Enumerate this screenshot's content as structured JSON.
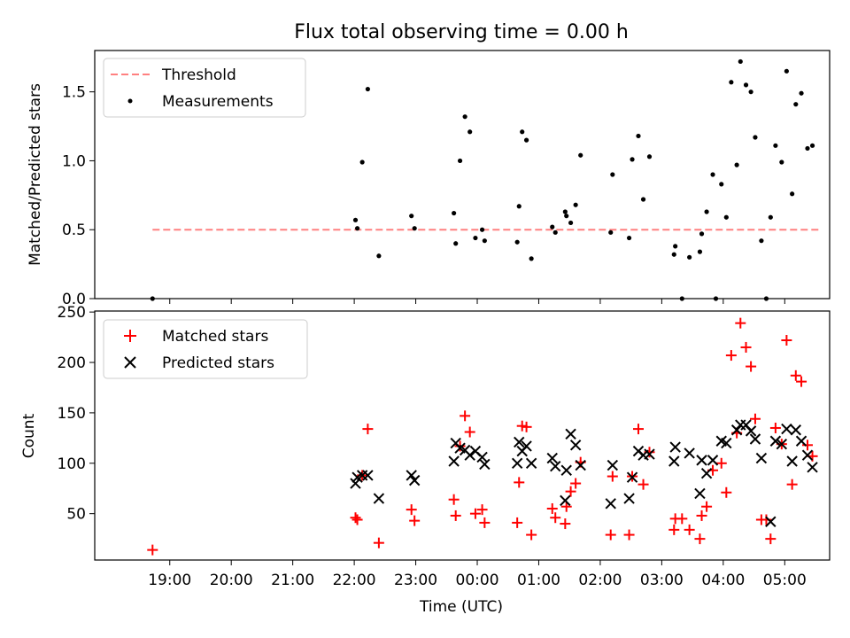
{
  "chart_data": [
    {
      "type": "scatter",
      "title": "Flux total observing time = 0.00 h",
      "xlabel": "",
      "ylabel": "Matched/Predicted stars",
      "ylim": [
        0,
        1.8
      ],
      "yticks": [
        0.0,
        0.5,
        1.0,
        1.5
      ],
      "ytick_labels": [
        "0.0",
        "0.5",
        "1.0",
        "1.5"
      ],
      "legend_position": "upper-left",
      "series": [
        {
          "name": "Threshold",
          "kind": "dashed-line",
          "color": "#ff8080",
          "points": [
            [
              18.72,
              0.5
            ],
            [
              29.55,
              0.5
            ]
          ]
        },
        {
          "name": "Measurements",
          "kind": "dots",
          "color": "#000000",
          "points": [
            [
              18.72,
              0.0
            ],
            [
              22.02,
              0.57
            ],
            [
              22.05,
              0.51
            ],
            [
              22.13,
              0.99
            ],
            [
              22.22,
              1.52
            ],
            [
              22.4,
              0.31
            ],
            [
              22.93,
              0.6
            ],
            [
              22.98,
              0.51
            ],
            [
              23.62,
              0.62
            ],
            [
              23.65,
              0.4
            ],
            [
              23.72,
              1.0
            ],
            [
              23.8,
              1.32
            ],
            [
              23.88,
              1.21
            ],
            [
              23.97,
              0.44
            ],
            [
              24.08,
              0.5
            ],
            [
              24.12,
              0.42
            ],
            [
              24.65,
              0.41
            ],
            [
              24.68,
              0.67
            ],
            [
              24.73,
              1.21
            ],
            [
              24.8,
              1.15
            ],
            [
              24.88,
              0.29
            ],
            [
              25.22,
              0.52
            ],
            [
              25.27,
              0.48
            ],
            [
              25.43,
              0.63
            ],
            [
              25.45,
              0.6
            ],
            [
              25.52,
              0.55
            ],
            [
              25.6,
              0.68
            ],
            [
              25.68,
              1.04
            ],
            [
              26.17,
              0.48
            ],
            [
              26.2,
              0.9
            ],
            [
              26.47,
              0.44
            ],
            [
              26.52,
              1.01
            ],
            [
              26.62,
              1.18
            ],
            [
              26.7,
              0.72
            ],
            [
              26.8,
              1.03
            ],
            [
              27.2,
              0.32
            ],
            [
              27.22,
              0.38
            ],
            [
              27.33,
              0.0
            ],
            [
              27.45,
              0.3
            ],
            [
              27.62,
              0.34
            ],
            [
              27.65,
              0.47
            ],
            [
              27.73,
              0.63
            ],
            [
              27.83,
              0.9
            ],
            [
              27.88,
              0.0
            ],
            [
              27.97,
              0.83
            ],
            [
              28.05,
              0.59
            ],
            [
              28.13,
              1.57
            ],
            [
              28.22,
              0.97
            ],
            [
              28.28,
              1.72
            ],
            [
              28.37,
              1.55
            ],
            [
              28.45,
              1.5
            ],
            [
              28.52,
              1.17
            ],
            [
              28.62,
              0.42
            ],
            [
              28.7,
              0.0
            ],
            [
              28.77,
              0.59
            ],
            [
              28.85,
              1.11
            ],
            [
              28.95,
              0.99
            ],
            [
              29.03,
              1.65
            ],
            [
              29.12,
              0.76
            ],
            [
              29.18,
              1.41
            ],
            [
              29.27,
              1.49
            ],
            [
              29.37,
              1.09
            ],
            [
              29.45,
              1.11
            ]
          ]
        }
      ]
    },
    {
      "type": "scatter",
      "title": "",
      "xlabel": "Time (UTC)",
      "ylabel": "Count",
      "xlim": [
        17.78,
        29.73
      ],
      "xticks": [
        19,
        20,
        21,
        22,
        23,
        24,
        25,
        26,
        27,
        28,
        29
      ],
      "xtick_labels": [
        "19:00",
        "20:00",
        "21:00",
        "22:00",
        "23:00",
        "00:00",
        "01:00",
        "02:00",
        "03:00",
        "04:00",
        "05:00"
      ],
      "ylim": [
        4,
        251
      ],
      "yticks": [
        50,
        100,
        150,
        200,
        250
      ],
      "ytick_labels": [
        "50",
        "100",
        "150",
        "200",
        "250"
      ],
      "legend_position": "upper-left",
      "series": [
        {
          "name": "Matched stars",
          "kind": "plus",
          "color": "#ff0000",
          "points": [
            [
              18.72,
              14
            ],
            [
              22.02,
              46
            ],
            [
              22.05,
              44
            ],
            [
              22.13,
              88
            ],
            [
              22.22,
              134
            ],
            [
              22.4,
              21
            ],
            [
              22.93,
              54
            ],
            [
              22.98,
              43
            ],
            [
              23.62,
              64
            ],
            [
              23.65,
              48
            ],
            [
              23.72,
              117
            ],
            [
              23.8,
              147
            ],
            [
              23.88,
              131
            ],
            [
              23.97,
              50
            ],
            [
              24.08,
              54
            ],
            [
              24.12,
              41
            ],
            [
              24.65,
              41
            ],
            [
              24.68,
              81
            ],
            [
              24.73,
              137
            ],
            [
              24.8,
              136
            ],
            [
              24.88,
              29
            ],
            [
              25.22,
              55
            ],
            [
              25.27,
              46
            ],
            [
              25.43,
              40
            ],
            [
              25.45,
              57
            ],
            [
              25.52,
              72
            ],
            [
              25.6,
              80
            ],
            [
              25.68,
              101
            ],
            [
              26.17,
              29
            ],
            [
              26.2,
              87
            ],
            [
              26.47,
              29
            ],
            [
              26.52,
              87
            ],
            [
              26.62,
              134
            ],
            [
              26.7,
              79
            ],
            [
              26.8,
              111
            ],
            [
              27.2,
              34
            ],
            [
              27.22,
              45
            ],
            [
              27.33,
              45
            ],
            [
              27.45,
              34
            ],
            [
              27.62,
              25
            ],
            [
              27.65,
              48
            ],
            [
              27.73,
              57
            ],
            [
              27.83,
              93
            ],
            [
              27.97,
              100
            ],
            [
              28.05,
              71
            ],
            [
              28.13,
              207
            ],
            [
              28.22,
              130
            ],
            [
              28.28,
              239
            ],
            [
              28.37,
              215
            ],
            [
              28.45,
              196
            ],
            [
              28.52,
              144
            ],
            [
              28.62,
              44
            ],
            [
              28.7,
              44
            ],
            [
              28.77,
              25
            ],
            [
              28.85,
              135
            ],
            [
              28.95,
              119
            ],
            [
              29.03,
              222
            ],
            [
              29.12,
              79
            ],
            [
              29.18,
              187
            ],
            [
              29.27,
              181
            ],
            [
              29.37,
              118
            ],
            [
              29.45,
              107
            ]
          ]
        },
        {
          "name": "Predicted stars",
          "kind": "cross",
          "color": "#000000",
          "points": [
            [
              22.02,
              80
            ],
            [
              22.05,
              86
            ],
            [
              22.13,
              88
            ],
            [
              22.22,
              88
            ],
            [
              22.4,
              65
            ],
            [
              22.93,
              88
            ],
            [
              22.98,
              83
            ],
            [
              23.62,
              102
            ],
            [
              23.65,
              120
            ],
            [
              23.72,
              115
            ],
            [
              23.8,
              113
            ],
            [
              23.88,
              108
            ],
            [
              23.97,
              112
            ],
            [
              24.08,
              106
            ],
            [
              24.12,
              99
            ],
            [
              24.65,
              100
            ],
            [
              24.68,
              121
            ],
            [
              24.73,
              112
            ],
            [
              24.8,
              117
            ],
            [
              24.88,
              100
            ],
            [
              25.22,
              105
            ],
            [
              25.27,
              97
            ],
            [
              25.43,
              63
            ],
            [
              25.45,
              93
            ],
            [
              25.52,
              129
            ],
            [
              25.6,
              118
            ],
            [
              25.68,
              98
            ],
            [
              26.17,
              60
            ],
            [
              26.2,
              98
            ],
            [
              26.47,
              65
            ],
            [
              26.52,
              86
            ],
            [
              26.62,
              112
            ],
            [
              26.7,
              108
            ],
            [
              26.8,
              109
            ],
            [
              27.2,
              102
            ],
            [
              27.22,
              116
            ],
            [
              27.45,
              110
            ],
            [
              27.62,
              70
            ],
            [
              27.65,
              103
            ],
            [
              27.73,
              90
            ],
            [
              27.83,
              103
            ],
            [
              27.97,
              122
            ],
            [
              28.05,
              120
            ],
            [
              28.22,
              133
            ],
            [
              28.28,
              138
            ],
            [
              28.37,
              138
            ],
            [
              28.45,
              132
            ],
            [
              28.52,
              124
            ],
            [
              28.62,
              105
            ],
            [
              28.77,
              42
            ],
            [
              28.85,
              122
            ],
            [
              28.95,
              119
            ],
            [
              29.03,
              134
            ],
            [
              29.12,
              102
            ],
            [
              29.18,
              133
            ],
            [
              29.27,
              122
            ],
            [
              29.37,
              108
            ],
            [
              29.45,
              96
            ]
          ]
        }
      ]
    }
  ]
}
